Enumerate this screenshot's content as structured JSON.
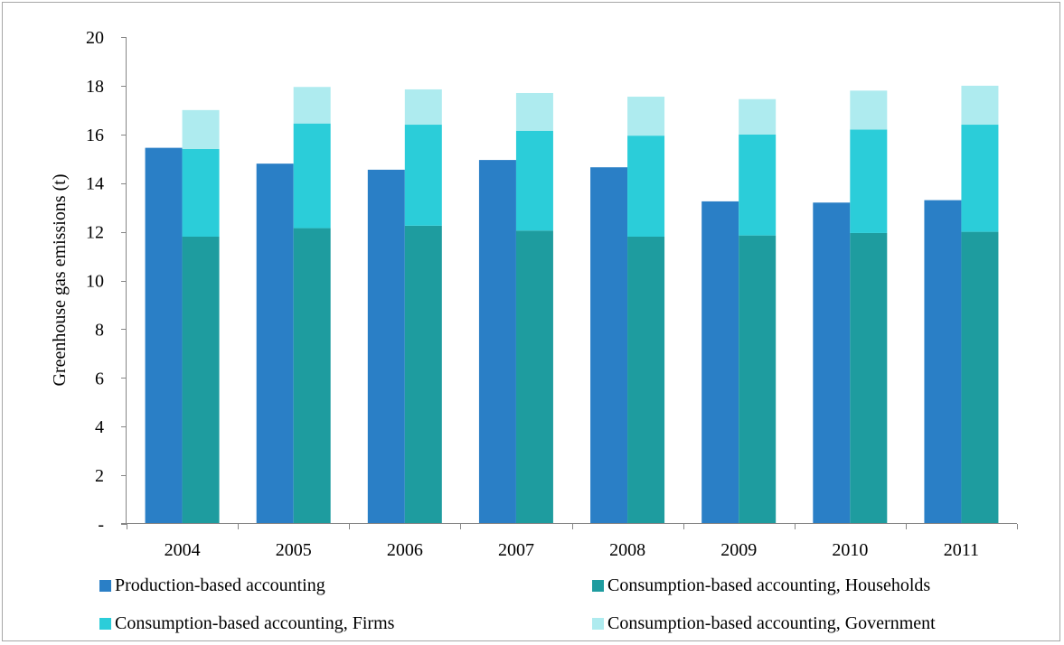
{
  "chart_data": {
    "type": "bar",
    "categories": [
      "2004",
      "2005",
      "2006",
      "2007",
      "2008",
      "2009",
      "2010",
      "2011"
    ],
    "ylabel": "Greenhouse gas emissions (t)",
    "ylim": [
      0,
      20
    ],
    "yticks": [
      0,
      2,
      4,
      6,
      8,
      10,
      12,
      14,
      16,
      18,
      20
    ],
    "ytick_labels": [
      "-",
      "2",
      "4",
      "6",
      "8",
      "10",
      "12",
      "14",
      "16",
      "18",
      "20"
    ],
    "grid": false,
    "legend_position": "bottom",
    "series": [
      {
        "name": "Production-based accounting",
        "stack": "production",
        "color": "#2a7fc6",
        "values": [
          15.45,
          14.8,
          14.55,
          14.95,
          14.65,
          13.25,
          13.2,
          13.3
        ]
      },
      {
        "name": "Consumption-based accounting, Households",
        "stack": "consumption",
        "color": "#1e9c9f",
        "values": [
          11.8,
          12.15,
          12.25,
          12.05,
          11.8,
          11.85,
          11.95,
          12.0
        ]
      },
      {
        "name": "Consumption-based accounting, Firms",
        "stack": "consumption",
        "color": "#2bcdd9",
        "values": [
          3.6,
          4.3,
          4.15,
          4.1,
          4.15,
          4.15,
          4.25,
          4.4
        ]
      },
      {
        "name": "Consumption-based accounting, Government",
        "stack": "consumption",
        "color": "#aeebef",
        "values": [
          1.6,
          1.5,
          1.45,
          1.55,
          1.6,
          1.45,
          1.6,
          1.6
        ]
      }
    ]
  }
}
